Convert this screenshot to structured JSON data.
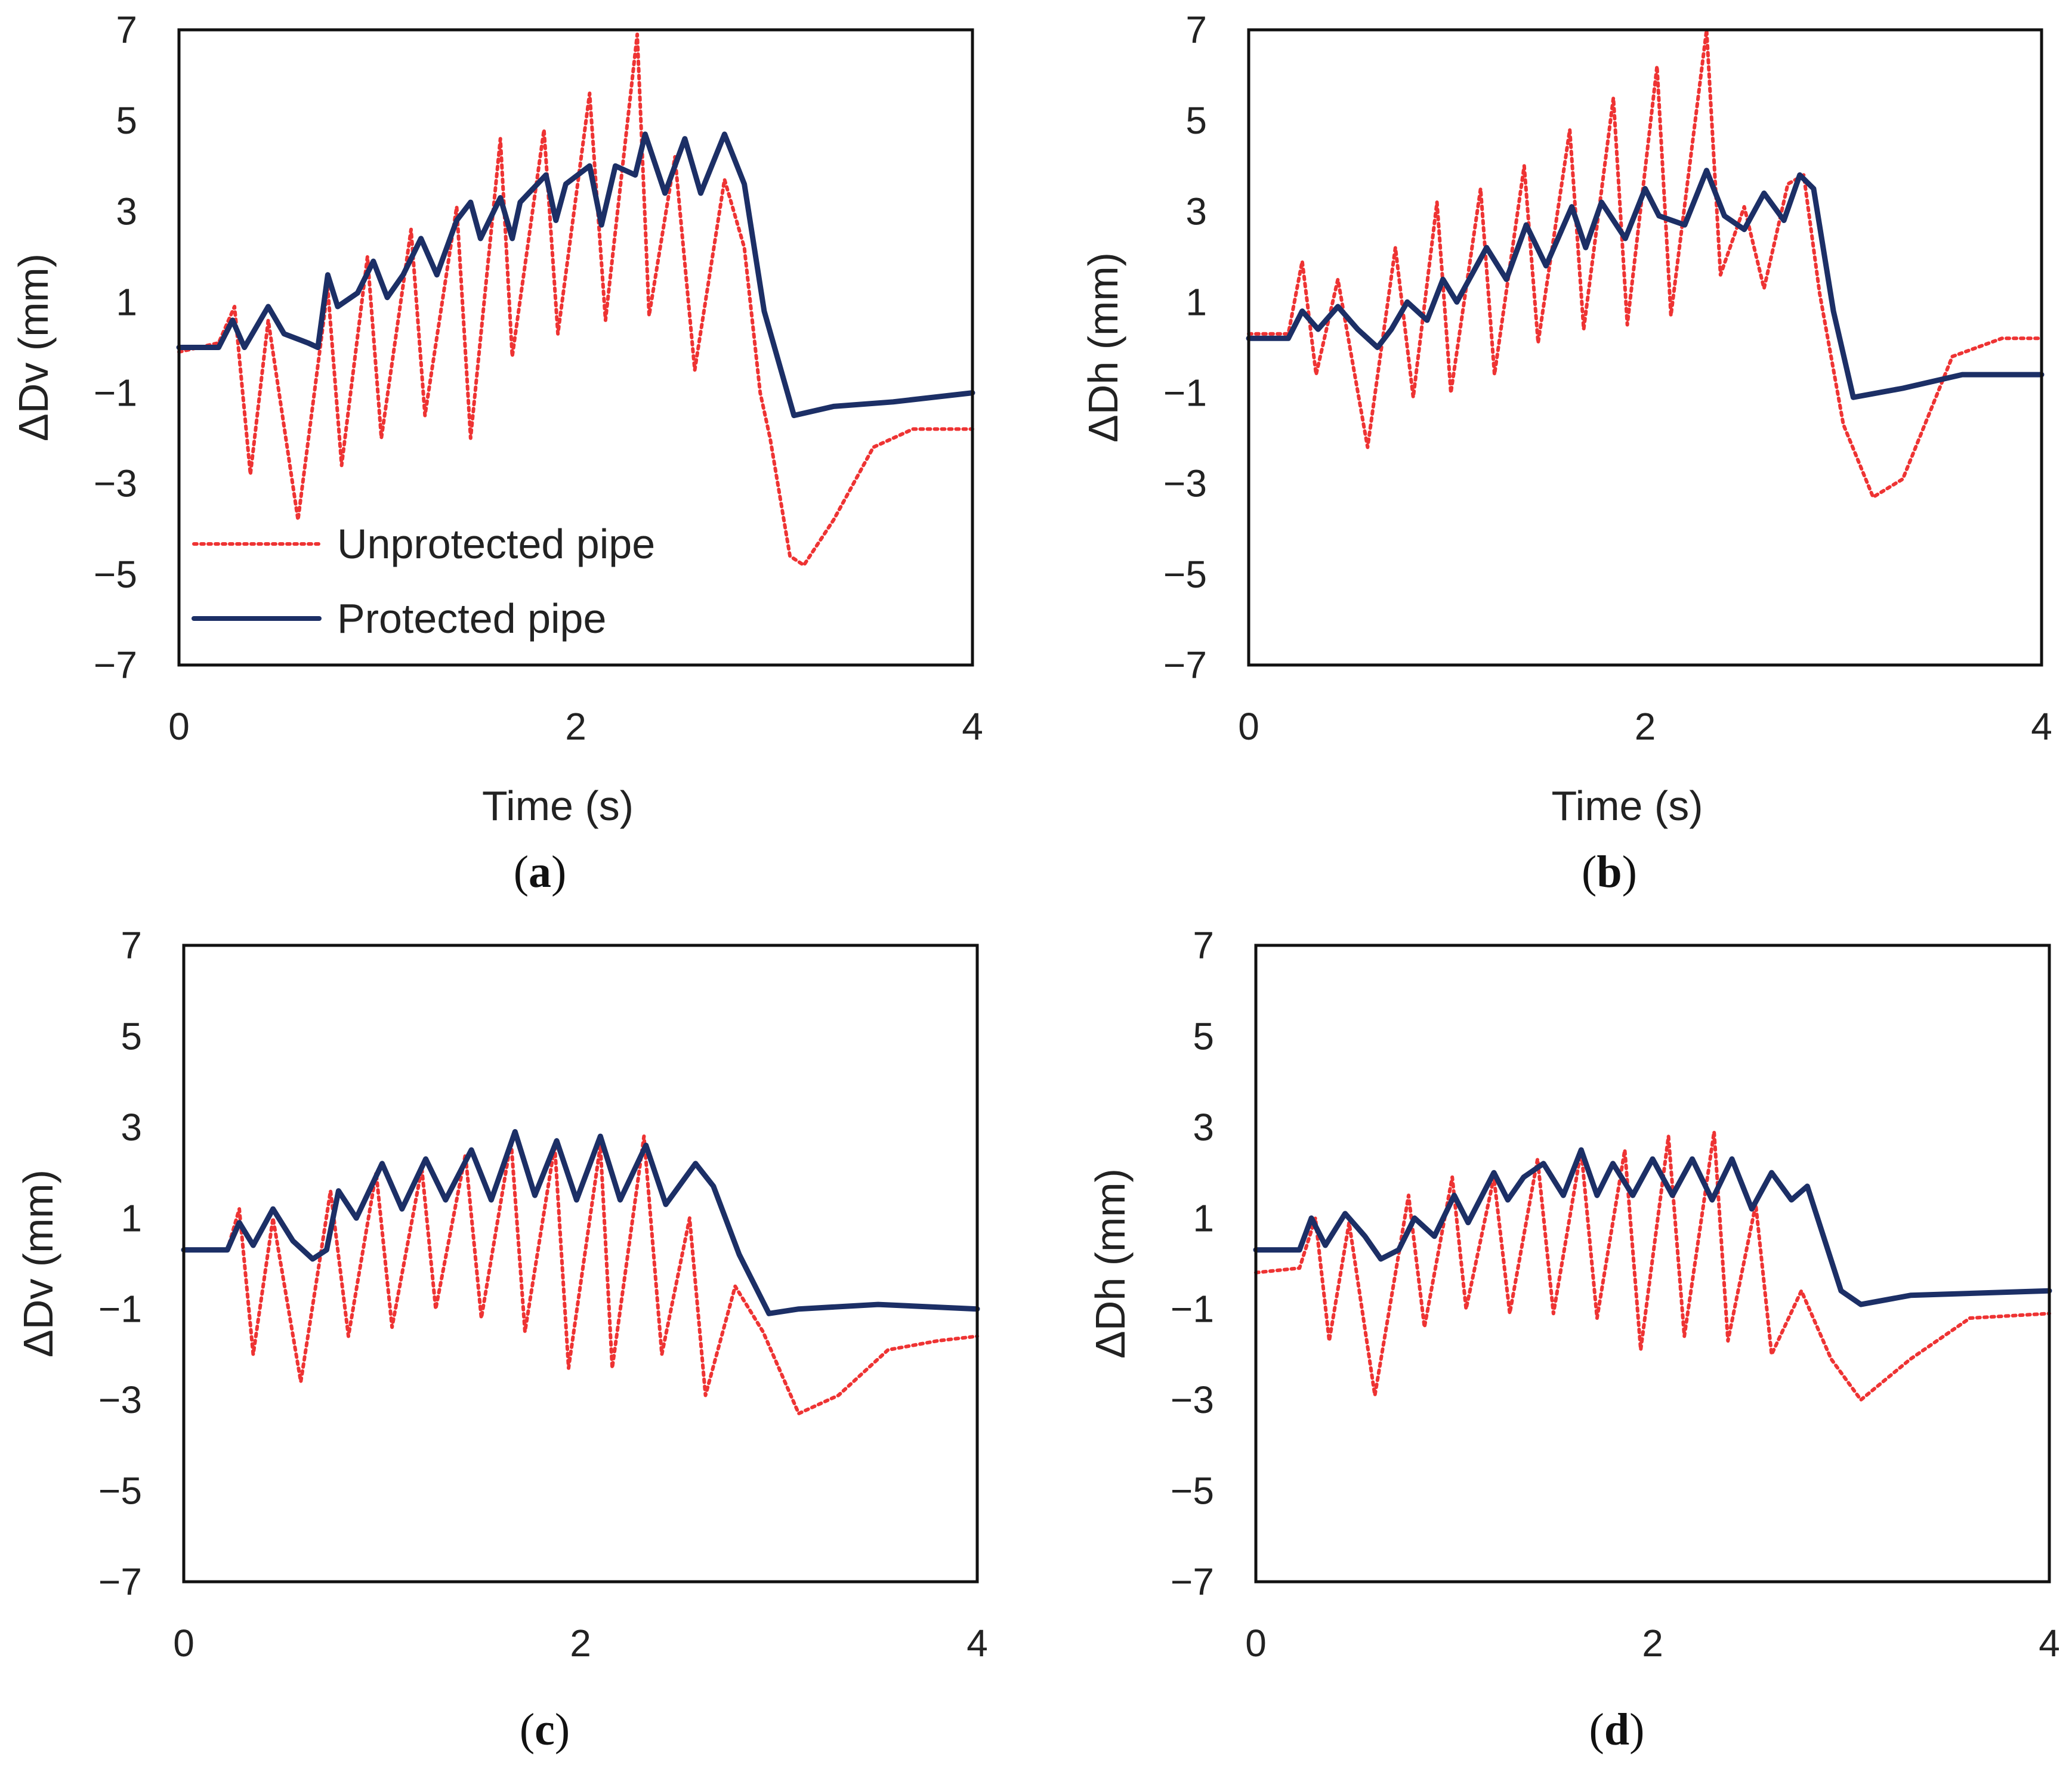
{
  "colors": {
    "unprotected": "#ee3333",
    "protected": "#1c2f66"
  },
  "legend": {
    "unprotected_label": "Unprotected pipe",
    "protected_label": "Protected pipe"
  },
  "chart_data": [
    {
      "type": "line",
      "panel": "a",
      "caption": {
        "open": "(",
        "letter": "a",
        "close": ")"
      },
      "xlabel": "Time (s)",
      "ylabel": "ΔDv (mm)",
      "xlim": [
        0,
        4
      ],
      "ylim": [
        -7,
        7
      ],
      "xticks": [
        "0",
        "2",
        "4"
      ],
      "yticks": [
        "7",
        "5",
        "3",
        "1",
        "−1",
        "−3",
        "−5",
        "−7"
      ],
      "legend": "lower-left",
      "grid": false,
      "series": [
        {
          "name": "Unprotected pipe",
          "style": "dotted",
          "x": [
            0,
            0.2,
            0.28,
            0.36,
            0.45,
            0.6,
            0.75,
            0.82,
            0.95,
            1.02,
            1.17,
            1.24,
            1.4,
            1.47,
            1.62,
            1.68,
            1.84,
            1.91,
            2.07,
            2.15,
            2.31,
            2.37,
            2.5,
            2.6,
            2.75,
            2.85,
            2.93,
            2.98,
            3.08,
            3.15,
            3.3,
            3.5,
            3.7,
            4.0
          ],
          "y": [
            -0.1,
            0.1,
            0.9,
            -2.8,
            0.6,
            -3.8,
            1.3,
            -2.6,
            2.0,
            -2.0,
            2.6,
            -1.5,
            3.1,
            -2.0,
            4.6,
            -0.2,
            4.8,
            0.3,
            5.6,
            0.6,
            6.9,
            0.7,
            4.2,
            -0.5,
            3.7,
            2.2,
            -1.0,
            -2.0,
            -4.6,
            -4.8,
            -3.8,
            -2.2,
            -1.8,
            -1.8
          ]
        },
        {
          "name": "Protected pipe",
          "style": "solid",
          "x": [
            0,
            0.2,
            0.27,
            0.33,
            0.45,
            0.53,
            0.65,
            0.7,
            0.75,
            0.8,
            0.9,
            0.98,
            1.05,
            1.13,
            1.22,
            1.3,
            1.4,
            1.47,
            1.52,
            1.62,
            1.68,
            1.72,
            1.85,
            1.9,
            1.95,
            2.07,
            2.13,
            2.2,
            2.3,
            2.35,
            2.45,
            2.55,
            2.63,
            2.75,
            2.85,
            2.95,
            3.1,
            3.3,
            3.6,
            4.0
          ],
          "y": [
            0.0,
            0.0,
            0.6,
            0.0,
            0.9,
            0.3,
            0.1,
            0.0,
            1.6,
            0.9,
            1.2,
            1.9,
            1.1,
            1.6,
            2.4,
            1.6,
            2.8,
            3.2,
            2.4,
            3.3,
            2.4,
            3.2,
            3.8,
            2.8,
            3.6,
            4.0,
            2.7,
            4.0,
            3.8,
            4.7,
            3.4,
            4.6,
            3.4,
            4.7,
            3.6,
            0.8,
            -1.5,
            -1.3,
            -1.2,
            -1.0
          ]
        }
      ]
    },
    {
      "type": "line",
      "panel": "b",
      "caption": {
        "open": "(",
        "letter": "b",
        "close": ")"
      },
      "xlabel": "Time (s)",
      "ylabel": "ΔDh (mm)",
      "xlim": [
        0,
        4
      ],
      "ylim": [
        -7,
        7
      ],
      "xticks": [
        "0",
        "2",
        "4"
      ],
      "yticks": [
        "7",
        "5",
        "3",
        "1",
        "−1",
        "−3",
        "−5",
        "−7"
      ],
      "grid": false,
      "series": [
        {
          "name": "Unprotected pipe",
          "style": "dotted",
          "x": [
            0,
            0.2,
            0.27,
            0.34,
            0.45,
            0.6,
            0.74,
            0.83,
            0.95,
            1.02,
            1.17,
            1.24,
            1.39,
            1.46,
            1.62,
            1.69,
            1.84,
            1.91,
            2.06,
            2.13,
            2.31,
            2.38,
            2.5,
            2.6,
            2.72,
            2.8,
            2.88,
            3.0,
            3.15,
            3.3,
            3.55,
            3.8,
            4.0
          ],
          "y": [
            0.3,
            0.3,
            1.9,
            -0.6,
            1.5,
            -2.2,
            2.2,
            -1.1,
            3.2,
            -1.0,
            3.5,
            -0.6,
            4.0,
            0.1,
            4.8,
            0.4,
            5.5,
            0.5,
            6.2,
            0.7,
            7.0,
            1.6,
            3.1,
            1.3,
            3.6,
            3.8,
            1.2,
            -1.7,
            -3.3,
            -2.9,
            -0.2,
            0.2,
            0.2
          ]
        },
        {
          "name": "Protected pipe",
          "style": "solid",
          "x": [
            0,
            0.2,
            0.27,
            0.35,
            0.45,
            0.55,
            0.65,
            0.72,
            0.8,
            0.9,
            0.98,
            1.05,
            1.2,
            1.3,
            1.4,
            1.5,
            1.63,
            1.7,
            1.78,
            1.9,
            2.0,
            2.07,
            2.2,
            2.31,
            2.4,
            2.5,
            2.6,
            2.7,
            2.78,
            2.85,
            2.95,
            3.05,
            3.3,
            3.6,
            4.0
          ],
          "y": [
            0.2,
            0.2,
            0.8,
            0.4,
            0.9,
            0.4,
            0.0,
            0.4,
            1.0,
            0.6,
            1.5,
            1.0,
            2.2,
            1.5,
            2.7,
            1.8,
            3.1,
            2.2,
            3.2,
            2.4,
            3.5,
            2.9,
            2.7,
            3.9,
            2.9,
            2.6,
            3.4,
            2.8,
            3.8,
            3.5,
            0.8,
            -1.1,
            -0.9,
            -0.6,
            -0.6
          ]
        }
      ]
    },
    {
      "type": "line",
      "panel": "c",
      "caption": {
        "open": "(",
        "letter": "c",
        "close": ")"
      },
      "xlabel": "",
      "ylabel": "ΔDv (mm)",
      "xlim": [
        0,
        4
      ],
      "ylim": [
        -7,
        7
      ],
      "xticks": [
        "0",
        "2",
        "4"
      ],
      "yticks": [
        "7",
        "5",
        "3",
        "1",
        "−1",
        "−3",
        "−5",
        "−7"
      ],
      "grid": false,
      "series": [
        {
          "name": "Unprotected pipe",
          "style": "dotted",
          "x": [
            0,
            0.22,
            0.28,
            0.35,
            0.45,
            0.59,
            0.74,
            0.83,
            0.97,
            1.05,
            1.2,
            1.27,
            1.42,
            1.5,
            1.65,
            1.72,
            1.87,
            1.94,
            2.1,
            2.16,
            2.32,
            2.41,
            2.55,
            2.63,
            2.78,
            2.92,
            3.1,
            3.3,
            3.55,
            3.8,
            4.0
          ],
          "y": [
            0.3,
            0.3,
            1.2,
            -2.0,
            1.0,
            -2.6,
            1.6,
            -1.6,
            2.0,
            -1.4,
            2.1,
            -1.0,
            2.4,
            -1.2,
            2.7,
            -1.5,
            2.6,
            -2.3,
            2.6,
            -2.3,
            2.8,
            -2.0,
            1.0,
            -2.9,
            -0.5,
            -1.5,
            -3.3,
            -2.9,
            -1.9,
            -1.7,
            -1.6
          ]
        },
        {
          "name": "Protected pipe",
          "style": "solid",
          "x": [
            0,
            0.22,
            0.28,
            0.35,
            0.45,
            0.55,
            0.65,
            0.72,
            0.78,
            0.87,
            1.0,
            1.1,
            1.22,
            1.32,
            1.45,
            1.55,
            1.67,
            1.77,
            1.88,
            1.98,
            2.1,
            2.2,
            2.33,
            2.43,
            2.58,
            2.67,
            2.8,
            2.95,
            3.1,
            3.5,
            4.0
          ],
          "y": [
            0.3,
            0.3,
            0.9,
            0.4,
            1.2,
            0.5,
            0.1,
            0.3,
            1.6,
            1.0,
            2.2,
            1.2,
            2.3,
            1.4,
            2.5,
            1.4,
            2.9,
            1.5,
            2.7,
            1.4,
            2.8,
            1.4,
            2.6,
            1.3,
            2.2,
            1.7,
            0.2,
            -1.1,
            -1.0,
            -0.9,
            -1.0
          ]
        }
      ]
    },
    {
      "type": "line",
      "panel": "d",
      "caption": {
        "open": "(",
        "letter": "d",
        "close": ")"
      },
      "xlabel": "",
      "ylabel": "ΔDh (mm)",
      "xlim": [
        0,
        4
      ],
      "ylim": [
        -7,
        7
      ],
      "xticks": [
        "0",
        "2",
        "4"
      ],
      "yticks": [
        "7",
        "5",
        "3",
        "1",
        "−1",
        "−3",
        "−5",
        "−7"
      ],
      "grid": false,
      "series": [
        {
          "name": "Unprotected pipe",
          "style": "dotted",
          "x": [
            0,
            0.22,
            0.3,
            0.37,
            0.47,
            0.6,
            0.77,
            0.85,
            0.99,
            1.06,
            1.2,
            1.28,
            1.42,
            1.5,
            1.64,
            1.72,
            1.86,
            1.94,
            2.08,
            2.16,
            2.31,
            2.38,
            2.52,
            2.6,
            2.75,
            2.9,
            3.05,
            3.3,
            3.6,
            4.0
          ],
          "y": [
            -0.2,
            -0.1,
            1.0,
            -1.7,
            0.9,
            -2.9,
            1.5,
            -1.4,
            1.9,
            -1.0,
            1.9,
            -1.1,
            2.3,
            -1.1,
            2.5,
            -1.2,
            2.5,
            -1.9,
            2.8,
            -1.6,
            2.9,
            -1.7,
            1.3,
            -2.0,
            -0.6,
            -2.1,
            -3.0,
            -2.1,
            -1.2,
            -1.1
          ]
        },
        {
          "name": "Protected pipe",
          "style": "solid",
          "x": [
            0,
            0.22,
            0.28,
            0.35,
            0.45,
            0.55,
            0.63,
            0.72,
            0.8,
            0.9,
            1.0,
            1.07,
            1.2,
            1.27,
            1.35,
            1.45,
            1.55,
            1.64,
            1.72,
            1.8,
            1.9,
            2.0,
            2.1,
            2.2,
            2.3,
            2.4,
            2.5,
            2.6,
            2.7,
            2.78,
            2.95,
            3.05,
            3.3,
            4.0
          ],
          "y": [
            0.3,
            0.3,
            1.0,
            0.4,
            1.1,
            0.6,
            0.1,
            0.3,
            1.0,
            0.6,
            1.5,
            0.9,
            2.0,
            1.4,
            1.9,
            2.2,
            1.5,
            2.5,
            1.5,
            2.2,
            1.5,
            2.3,
            1.5,
            2.3,
            1.4,
            2.3,
            1.2,
            2.0,
            1.4,
            1.7,
            -0.6,
            -0.9,
            -0.7,
            -0.6
          ]
        }
      ]
    }
  ]
}
